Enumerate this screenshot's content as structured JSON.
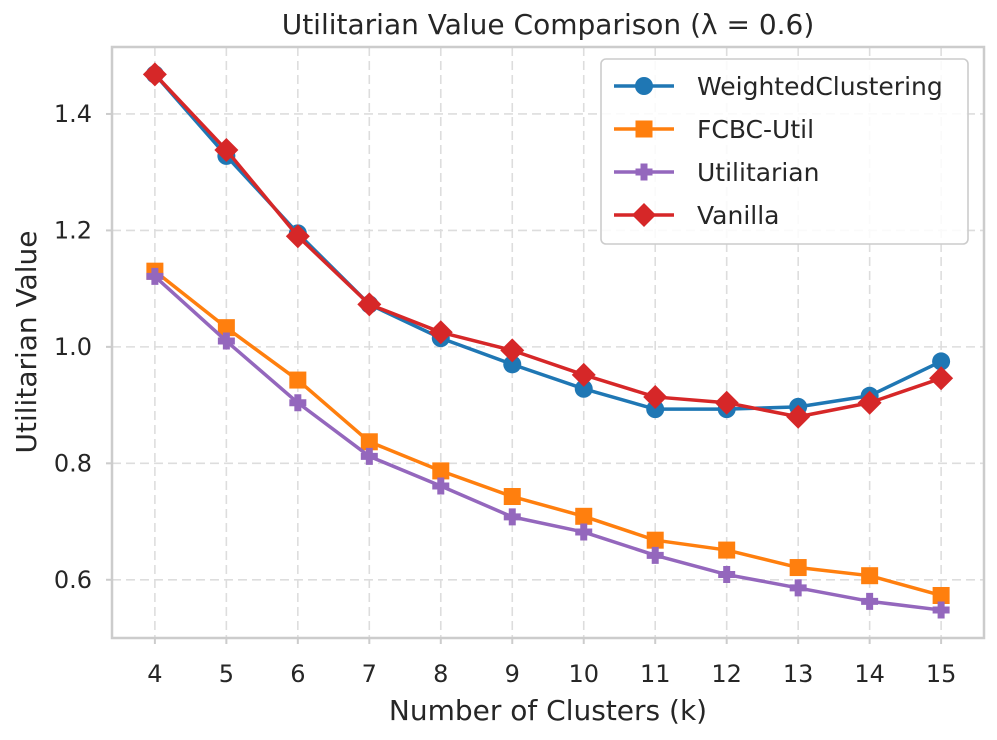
{
  "chart_data": {
    "type": "line",
    "title": "Utilitarian Value Comparison (λ = 0.6)",
    "xlabel": "Number of Clusters (k)",
    "ylabel": "Utilitarian Value",
    "x": [
      4,
      5,
      6,
      7,
      8,
      9,
      10,
      11,
      12,
      13,
      14,
      15
    ],
    "xlim": [
      3.4,
      15.6
    ],
    "ylim": [
      0.5,
      1.515
    ],
    "yticks": [
      0.6,
      0.8,
      1.0,
      1.2,
      1.4
    ],
    "ytick_labels": [
      "0.6",
      "0.8",
      "1.0",
      "1.2",
      "1.4"
    ],
    "grid": true,
    "legend_position": "top-right",
    "series": [
      {
        "name": "WeightedClustering",
        "color": "#1f77b4",
        "marker": "circle",
        "values": [
          1.468,
          1.328,
          1.195,
          1.073,
          1.015,
          0.97,
          0.928,
          0.893,
          0.893,
          0.897,
          0.916,
          0.975
        ]
      },
      {
        "name": "FCBC-Util",
        "color": "#ff7f0e",
        "marker": "square",
        "values": [
          1.13,
          1.033,
          0.943,
          0.837,
          0.787,
          0.743,
          0.709,
          0.668,
          0.651,
          0.621,
          0.607,
          0.573
        ]
      },
      {
        "name": "Utilitarian",
        "color": "#9467bd",
        "marker": "plus",
        "values": [
          1.121,
          1.01,
          0.904,
          0.812,
          0.761,
          0.708,
          0.682,
          0.642,
          0.609,
          0.586,
          0.563,
          0.548
        ]
      },
      {
        "name": "Vanilla",
        "color": "#d62728",
        "marker": "diamond",
        "values": [
          1.468,
          1.338,
          1.19,
          1.073,
          1.025,
          0.994,
          0.952,
          0.914,
          0.904,
          0.88,
          0.904,
          0.946
        ]
      }
    ]
  }
}
